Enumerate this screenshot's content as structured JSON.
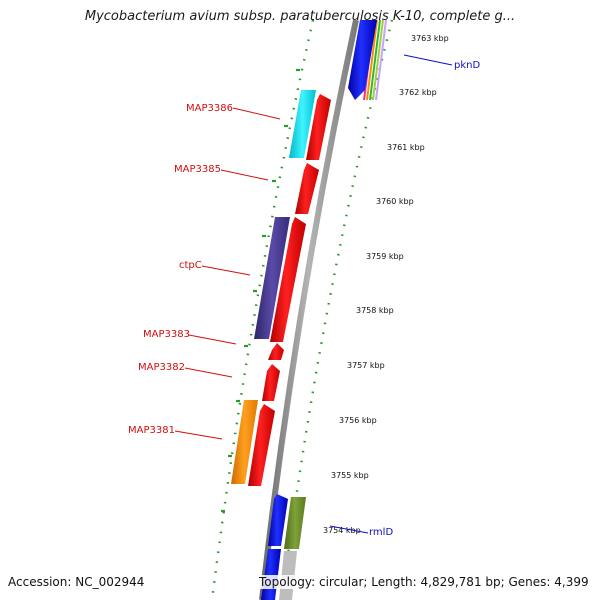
{
  "title": "Mycobacterium avium subsp. paratuberculosis K-10, complete g...",
  "footer": {
    "accession": "Accession: NC_002944",
    "summary": "Topology: circular; Length: 4,829,781 bp; Genes: 4,399"
  },
  "ticks": [
    {
      "label": "3763 kbp"
    },
    {
      "label": "3762 kbp"
    },
    {
      "label": "3761 kbp"
    },
    {
      "label": "3760 kbp"
    },
    {
      "label": "3759 kbp"
    },
    {
      "label": "3758 kbp"
    },
    {
      "label": "3757 kbp"
    },
    {
      "label": "3756 kbp"
    },
    {
      "label": "3755 kbp"
    },
    {
      "label": "3754 kbp"
    }
  ],
  "gene_labels": [
    {
      "text": "MAP3386",
      "color": "#d01010"
    },
    {
      "text": "MAP3385",
      "color": "#d01010"
    },
    {
      "text": "ctpC",
      "color": "#d01010"
    },
    {
      "text": "MAP3383",
      "color": "#d01010"
    },
    {
      "text": "MAP3382",
      "color": "#d01010"
    },
    {
      "text": "MAP3381",
      "color": "#d01010"
    },
    {
      "text": "pknD",
      "color": "#1010c0"
    },
    {
      "text": "rmlD",
      "color": "#1010c0"
    }
  ],
  "colors": {
    "backbone": "#8a8a8a",
    "tick_dots": "#2a9a2a",
    "forward_gene": "#ff0000",
    "cog_cyan": "#00e5ee",
    "cog_purple": "#4a3d8f",
    "cog_orange": "#ff8c00",
    "cog_olive": "#6b8e23",
    "gene_blue": "#1010e0"
  }
}
